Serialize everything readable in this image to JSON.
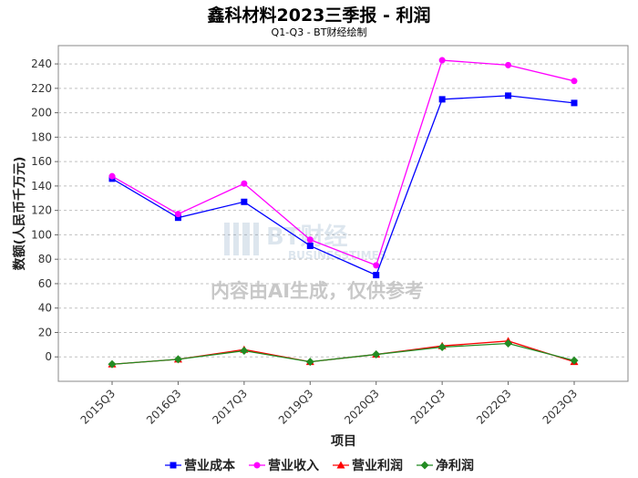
{
  "title": "鑫科材料2023三季报 - 利润",
  "subtitle": "Q1-Q3 - BT财经绘制",
  "watermark": {
    "logo_text": "BT财经",
    "logo_sub": "BUSINESSTIMES",
    "disclaimer": "内容由AI生成，仅供参考"
  },
  "chart_data": {
    "type": "line",
    "xlabel": "项目",
    "ylabel": "数额(人民币千万元)",
    "categories": [
      "2015Q3",
      "2016Q3",
      "2017Q3",
      "2019Q3",
      "2020Q3",
      "2021Q3",
      "2022Q3",
      "2023Q3"
    ],
    "ylim": [
      -20,
      255
    ],
    "yticks": [
      0,
      20,
      40,
      60,
      80,
      100,
      120,
      140,
      160,
      180,
      200,
      220,
      240
    ],
    "grid": true,
    "legend_position": "bottom",
    "series": [
      {
        "name": "营业成本",
        "color": "#0000ff",
        "marker": "square",
        "values": [
          146,
          114,
          127,
          91,
          67,
          211,
          214,
          208
        ]
      },
      {
        "name": "营业收入",
        "color": "#ff00ff",
        "marker": "circle",
        "values": [
          148,
          117,
          142,
          96,
          75,
          243,
          239,
          226
        ]
      },
      {
        "name": "营业利润",
        "color": "#ff0000",
        "marker": "triangle",
        "values": [
          -6,
          -2,
          6,
          -4,
          2,
          9,
          13,
          -4
        ]
      },
      {
        "name": "净利润",
        "color": "#228b22",
        "marker": "diamond",
        "values": [
          -6,
          -2,
          5,
          -4,
          2,
          8,
          11,
          -3
        ]
      }
    ]
  }
}
